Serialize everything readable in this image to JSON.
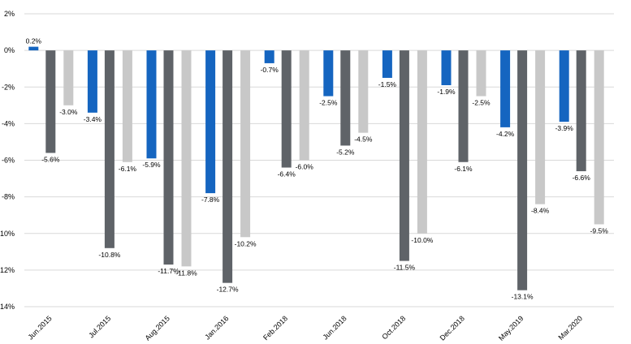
{
  "chart_data": {
    "type": "bar",
    "title": "",
    "xlabel": "",
    "ylabel": "",
    "ylim": [
      -14,
      2
    ],
    "y_ticks": [
      "2%",
      "0%",
      "-2%",
      "-4%",
      "-6%",
      "-8%",
      "-10%",
      "-12%",
      "-14%"
    ],
    "y_tick_values": [
      2,
      0,
      -2,
      -4,
      -6,
      -8,
      -10,
      -12,
      -14
    ],
    "grid": "horizontal",
    "legend": "none",
    "categories": [
      "Jun.2015",
      "Jul.2015",
      "Aug.2015",
      "Jan.2016",
      "Feb.2018",
      "Jun.2018",
      "Oct.2018",
      "Dec.2018",
      "May.2019",
      "Mar.2020"
    ],
    "series": [
      {
        "color": "#1565c0",
        "values": [
          0.2,
          -3.4,
          -5.9,
          -7.8,
          -0.7,
          -2.5,
          -1.5,
          -1.9,
          -4.2,
          -3.9
        ],
        "labels": [
          "0.2%",
          "-3.4%",
          "-5.9%",
          "-7.8%",
          "-0.7%",
          "-2.5%",
          "-1.5%",
          "-1.9%",
          "-4.2%",
          "-3.9%"
        ]
      },
      {
        "color": "#5f6368",
        "values": [
          -5.6,
          -10.8,
          -11.7,
          -12.7,
          -6.4,
          -5.2,
          -11.5,
          -6.1,
          -13.1,
          -6.6
        ],
        "labels": [
          "-5.6%",
          "-10.8%",
          "-11.7%",
          "-12.7%",
          "-6.4%",
          "-5.2%",
          "-11.5%",
          "-6.1%",
          "-13.1%",
          "-6.6%"
        ]
      },
      {
        "color": "#c8c8c8",
        "values": [
          -3.0,
          -6.1,
          -11.8,
          -10.2,
          -6.0,
          -4.5,
          -10.0,
          -2.5,
          -8.4,
          -9.5
        ],
        "labels": [
          "-3.0%",
          "-6.1%",
          "-11.8%",
          "-10.2%",
          "-6.0%",
          "-4.5%",
          "-10.0%",
          "-2.5%",
          "-8.4%",
          "-9.5%"
        ]
      }
    ]
  }
}
